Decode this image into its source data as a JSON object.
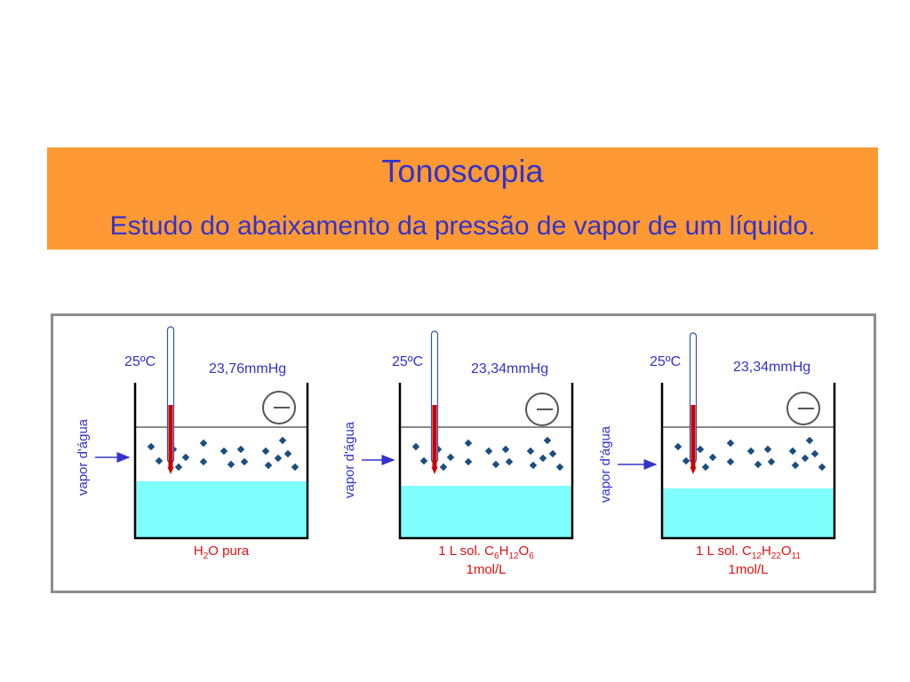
{
  "slide": {
    "title": "Tonoscopia",
    "subtitle": "Estudo do abaixamento da pressão de vapor de um líquido."
  },
  "colors": {
    "header_background": "#ff9933",
    "header_text": "#3333cc",
    "liquid": "#80ffff",
    "thermometer_mercury": "#cc0000",
    "molecule": "#1a4d80",
    "caption_text": "#e01010",
    "label_text": "#3333cc"
  },
  "beakers": [
    {
      "temperature": "25ºC",
      "pressure": "23,76mmHg",
      "vapor_label": "vapor d'água",
      "caption": {
        "line1": [
          {
            "text": "H",
            "sub": "2"
          },
          {
            "text": "O pura",
            "sub": ""
          }
        ],
        "line2": ""
      }
    },
    {
      "temperature": "25ºC",
      "pressure": "23,34mmHg",
      "vapor_label": "vapor d'água",
      "caption": {
        "line1": [
          {
            "text": "1 L sol. C",
            "sub": "6"
          },
          {
            "text": "H",
            "sub": "12"
          },
          {
            "text": "O",
            "sub": "6"
          }
        ],
        "line2": "1mol/L"
      }
    },
    {
      "temperature": "25ºC",
      "pressure": "23,34mmHg",
      "vapor_label": "vapor d'água",
      "caption": {
        "line1": [
          {
            "text": "1 L sol. C",
            "sub": "12"
          },
          {
            "text": "H",
            "sub": "22"
          },
          {
            "text": "O",
            "sub": "11"
          }
        ],
        "line2": "1mol/L"
      }
    }
  ]
}
